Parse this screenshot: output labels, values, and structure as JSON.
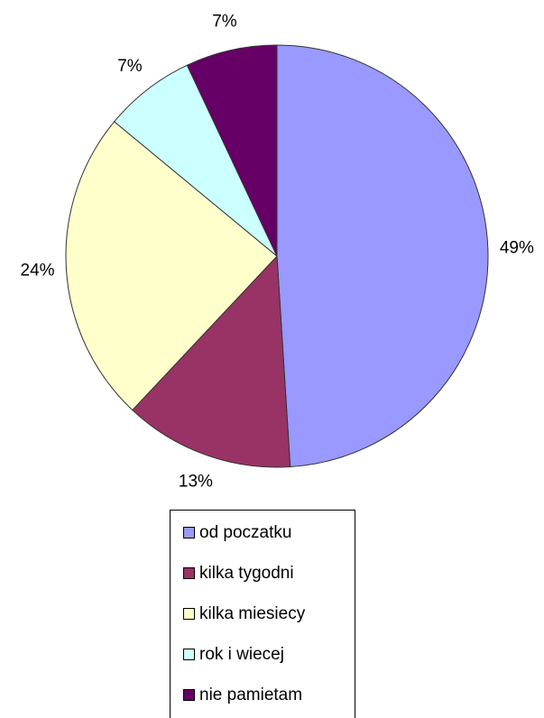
{
  "chart_data": {
    "type": "pie",
    "categories": [
      "od poczatku",
      "kilka tygodni",
      "kilka miesiecy",
      "rok i wiecej",
      "nie pamietam"
    ],
    "values": [
      49,
      13,
      24,
      7,
      7
    ],
    "value_labels": [
      "49%",
      "13%",
      "24%",
      "7%",
      "7%"
    ],
    "colors": [
      "#9999ff",
      "#993366",
      "#ffffcc",
      "#ccffff",
      "#660066"
    ],
    "legend": "bottom"
  }
}
